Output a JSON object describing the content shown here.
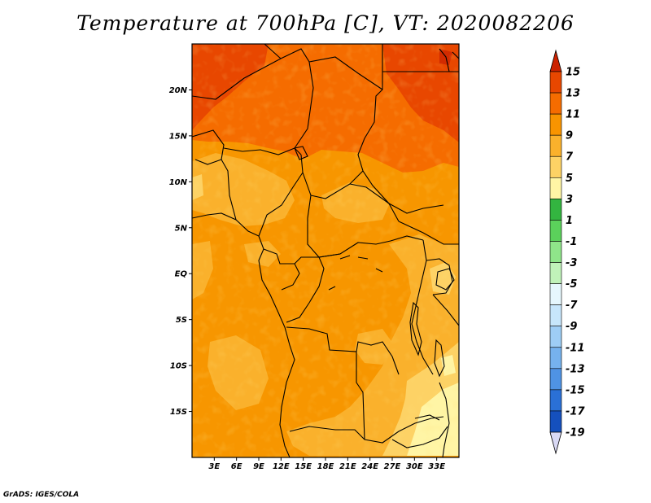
{
  "title": "Temperature at 700hPa [C], VT: 2020082206",
  "credit": "GrADS: IGES/COLA",
  "map": {
    "lon_range": [
      0,
      36
    ],
    "lat_range": [
      -20,
      25
    ],
    "lat_ticks": [
      {
        "value": 20,
        "label": "20N"
      },
      {
        "value": 15,
        "label": "15N"
      },
      {
        "value": 10,
        "label": "10N"
      },
      {
        "value": 5,
        "label": "5N"
      },
      {
        "value": 0,
        "label": "EQ"
      },
      {
        "value": -5,
        "label": "5S"
      },
      {
        "value": -10,
        "label": "10S"
      },
      {
        "value": -15,
        "label": "15S"
      }
    ],
    "lon_ticks": [
      {
        "value": 3,
        "label": "3E"
      },
      {
        "value": 6,
        "label": "6E"
      },
      {
        "value": 9,
        "label": "9E"
      },
      {
        "value": 12,
        "label": "12E"
      },
      {
        "value": 15,
        "label": "15E"
      },
      {
        "value": 18,
        "label": "18E"
      },
      {
        "value": 21,
        "label": "21E"
      },
      {
        "value": 24,
        "label": "24E"
      },
      {
        "value": 27,
        "label": "27E"
      },
      {
        "value": 30,
        "label": "30E"
      },
      {
        "value": 33,
        "label": "33E"
      }
    ]
  },
  "colorbar": {
    "labels": [
      "15",
      "13",
      "11",
      "9",
      "7",
      "5",
      "3",
      "1",
      "-1",
      "-3",
      "-5",
      "-7",
      "-9",
      "-11",
      "-13",
      "-15",
      "-17",
      "-19"
    ],
    "colors": [
      "#d22b00",
      "#e84700",
      "#f56c00",
      "#f89400",
      "#fab12c",
      "#fdd265",
      "#fff5a5",
      "#33b540",
      "#5bd15b",
      "#8fe58a",
      "#c0f2b9",
      "#e6f7fd",
      "#c7e6fb",
      "#9ecdf5",
      "#76b2ee",
      "#4f93e4",
      "#2a70d6",
      "#1550bd",
      "#0b329b",
      "#061a7a"
    ],
    "top_arrow_color": "#cc2200",
    "bottom_arrow_color": "#d9d9f5"
  }
}
